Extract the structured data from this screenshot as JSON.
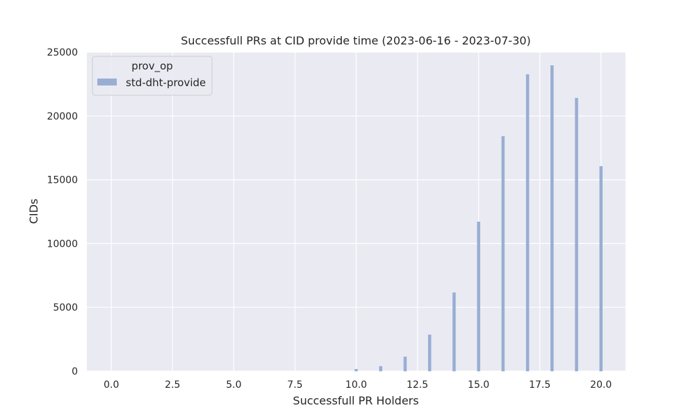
{
  "chart_data": {
    "type": "bar",
    "title": "Successfull PRs at CID provide time (2023-06-16 - 2023-07-30)",
    "xlabel": "Successfull PR Holders",
    "ylabel": "CIDs",
    "xlim": [
      -1,
      21
    ],
    "ylim": [
      0,
      25000
    ],
    "x_ticks": [
      0,
      2.5,
      5,
      7.5,
      10,
      12.5,
      15,
      17.5,
      20
    ],
    "x_tick_labels": [
      "0.0",
      "2.5",
      "5.0",
      "7.5",
      "10.0",
      "12.5",
      "15.0",
      "17.5",
      "20.0"
    ],
    "y_ticks": [
      0,
      5000,
      10000,
      15000,
      20000,
      25000
    ],
    "y_tick_labels": [
      "0",
      "5000",
      "10000",
      "15000",
      "20000",
      "25000"
    ],
    "grid": true,
    "legend": {
      "title": "prov_op",
      "placement": "top-left"
    },
    "series": [
      {
        "name": "std-dht-provide",
        "color": "#98aed4",
        "x": [
          10,
          11,
          12,
          13,
          14,
          15,
          16,
          17,
          18,
          19,
          20
        ],
        "values": [
          150,
          380,
          1120,
          2850,
          6150,
          11700,
          18400,
          23250,
          23950,
          21400,
          16050
        ]
      }
    ]
  },
  "colors": {
    "plot_background": "#eaeaf2",
    "grid": "#ffffff",
    "text": "#262626"
  }
}
